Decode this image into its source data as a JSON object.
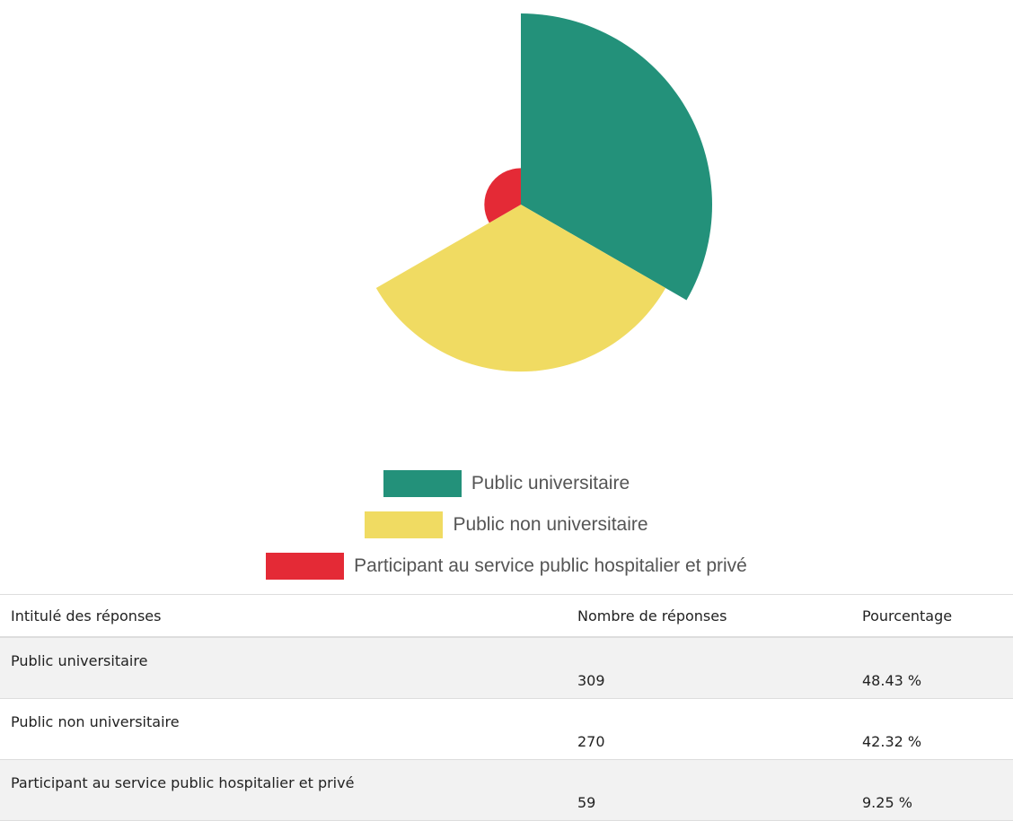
{
  "chart_data": {
    "type": "polarArea",
    "categories": [
      "Public universitaire",
      "Public non universitaire",
      "Participant au service public hospitalier et privé"
    ],
    "values": [
      309,
      270,
      59
    ],
    "colors": [
      "#23917a",
      "#f0db62",
      "#e42a36"
    ]
  },
  "table": {
    "headers": [
      "Intitulé des réponses",
      "Nombre de réponses",
      "Pourcentage"
    ],
    "percentages": [
      "48.43 %",
      "42.32 %",
      "9.25 %"
    ]
  }
}
